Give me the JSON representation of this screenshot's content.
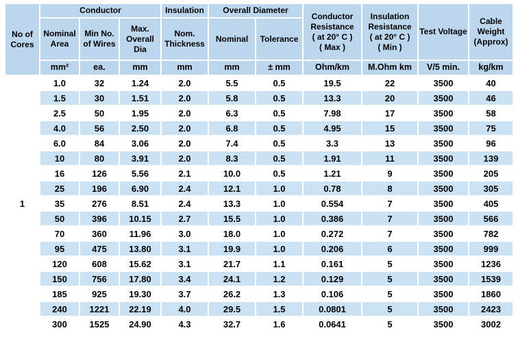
{
  "colors": {
    "header_bg": "#BCD6EE",
    "stripe_bg": "#CBE2F4",
    "text_color": "#000000",
    "page_bg": "#FFFFFF"
  },
  "table": {
    "header": {
      "no_of_cores": "No of\nCores",
      "conductor_group": "Conductor",
      "insulation_group": "Insulation",
      "overall_diameter_group": "Overall Diameter",
      "nominal_area": "Nominal\nArea",
      "min_no_of_wires": "Min No.\nof Wires",
      "max_overall_dia": "Max.\nOverall\nDia",
      "nom_thickness": "Nom.\nThickness",
      "od_nominal": "Nominal",
      "od_tolerance": "Tolerance",
      "conductor_resistance": "Conductor\nResistance\n( at 20° C )\n( Max )",
      "insulation_resistance": "Insulation\nResistance\n( at 20° C )\n( Min )",
      "test_voltage": "Test Voltage",
      "cable_weight": "Cable\nWeight\n(Approx)"
    },
    "units": [
      "mm²",
      "ea.",
      "mm",
      "mm",
      "mm",
      "± mm",
      "Ohm/km",
      "M.Ohm km",
      "V/5 min.",
      "kg/km"
    ],
    "cores_value": "1",
    "column_keys": [
      "nominal-area",
      "min-wires",
      "max-overall-dia",
      "nom-thickness",
      "od-nominal",
      "od-tolerance",
      "conductor-resistance",
      "insulation-resistance",
      "test-voltage",
      "cable-weight"
    ],
    "rows": [
      [
        "1.0",
        "32",
        "1.24",
        "2.0",
        "5.5",
        "0.5",
        "19.5",
        "22",
        "3500",
        "40"
      ],
      [
        "1.5",
        "30",
        "1.51",
        "2.0",
        "5.8",
        "0.5",
        "13.3",
        "20",
        "3500",
        "46"
      ],
      [
        "2.5",
        "50",
        "1.95",
        "2.0",
        "6.3",
        "0.5",
        "7.98",
        "17",
        "3500",
        "58"
      ],
      [
        "4.0",
        "56",
        "2.50",
        "2.0",
        "6.8",
        "0.5",
        "4.95",
        "15",
        "3500",
        "75"
      ],
      [
        "6.0",
        "84",
        "3.06",
        "2.0",
        "7.4",
        "0.5",
        "3.3",
        "13",
        "3500",
        "96"
      ],
      [
        "10",
        "80",
        "3.91",
        "2.0",
        "8.3",
        "0.5",
        "1.91",
        "11",
        "3500",
        "139"
      ],
      [
        "16",
        "126",
        "5.56",
        "2.1",
        "10.0",
        "0.5",
        "1.21",
        "9",
        "3500",
        "205"
      ],
      [
        "25",
        "196",
        "6.90",
        "2.4",
        "12.1",
        "1.0",
        "0.78",
        "8",
        "3500",
        "305"
      ],
      [
        "35",
        "276",
        "8.51",
        "2.4",
        "13.3",
        "1.0",
        "0.554",
        "7",
        "3500",
        "405"
      ],
      [
        "50",
        "396",
        "10.15",
        "2.7",
        "15.5",
        "1.0",
        "0.386",
        "7",
        "3500",
        "566"
      ],
      [
        "70",
        "360",
        "11.96",
        "3.0",
        "18.0",
        "1.0",
        "0.272",
        "7",
        "3500",
        "782"
      ],
      [
        "95",
        "475",
        "13.80",
        "3.1",
        "19.9",
        "1.0",
        "0.206",
        "6",
        "3500",
        "999"
      ],
      [
        "120",
        "608",
        "15.62",
        "3.1",
        "21.7",
        "1.1",
        "0.161",
        "5",
        "3500",
        "1236"
      ],
      [
        "150",
        "756",
        "17.80",
        "3.4",
        "24.1",
        "1.2",
        "0.129",
        "5",
        "3500",
        "1539"
      ],
      [
        "185",
        "925",
        "19.30",
        "3.7",
        "26.2",
        "1.3",
        "0.106",
        "5",
        "3500",
        "1860"
      ],
      [
        "240",
        "1221",
        "22.19",
        "4.0",
        "29.5",
        "1.5",
        "0.0801",
        "5",
        "3500",
        "2423"
      ],
      [
        "300",
        "1525",
        "24.90",
        "4.3",
        "32.7",
        "1.6",
        "0.0641",
        "5",
        "3500",
        "3002"
      ]
    ]
  }
}
